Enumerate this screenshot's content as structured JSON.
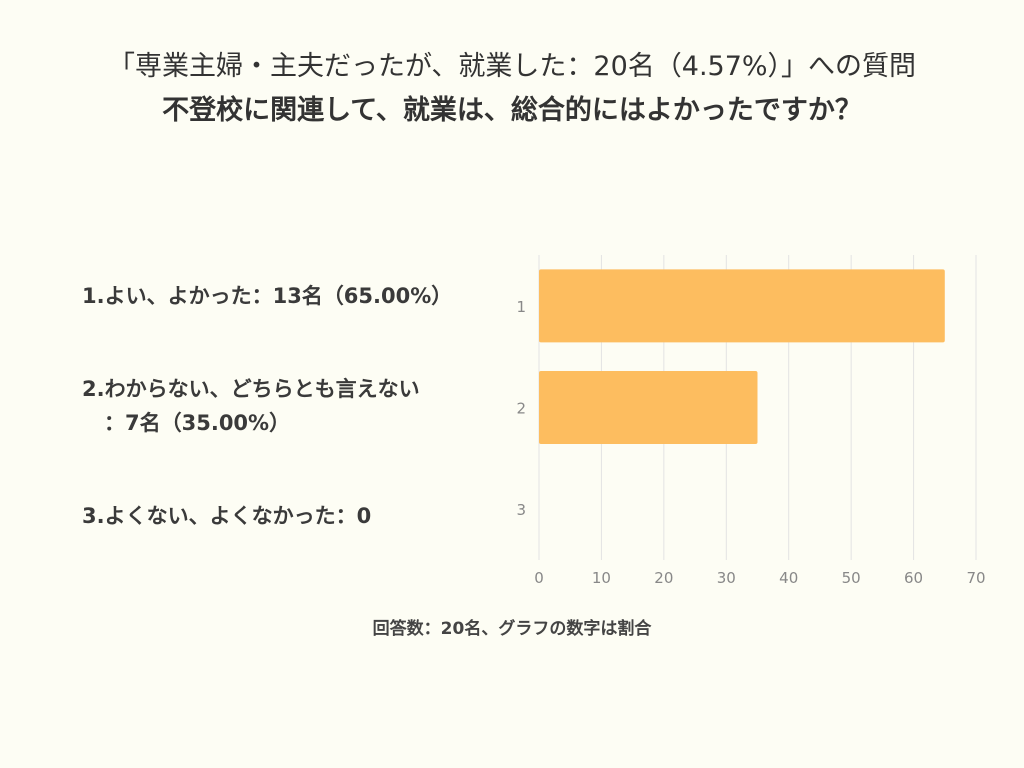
{
  "header": {
    "title": "「専業主婦・主夫だったが、就業した：20名（4.57%）」への質問",
    "subtitle": "不登校に関連して、就業は、総合的にはよかったですか？"
  },
  "category_labels": [
    {
      "line1": "1.よい、よかった：13名（65.00%）",
      "line2": ""
    },
    {
      "line1": "2.わからない、どちらとも言えない",
      "line2": "：7名（35.00%）"
    },
    {
      "line1": "3.よくない、よくなかった：0",
      "line2": ""
    }
  ],
  "footnote": "回答数：20名、グラフの数字は割合",
  "chart_data": {
    "type": "bar",
    "orientation": "horizontal",
    "categories": [
      "1",
      "2",
      "3"
    ],
    "values": [
      65,
      35,
      0
    ],
    "xlim": [
      0,
      70
    ],
    "xticks": [
      0,
      10,
      20,
      30,
      40,
      50,
      60,
      70
    ],
    "grid": true,
    "bar_color": "#fdbd5f",
    "grid_color": "#e3e3e3"
  }
}
